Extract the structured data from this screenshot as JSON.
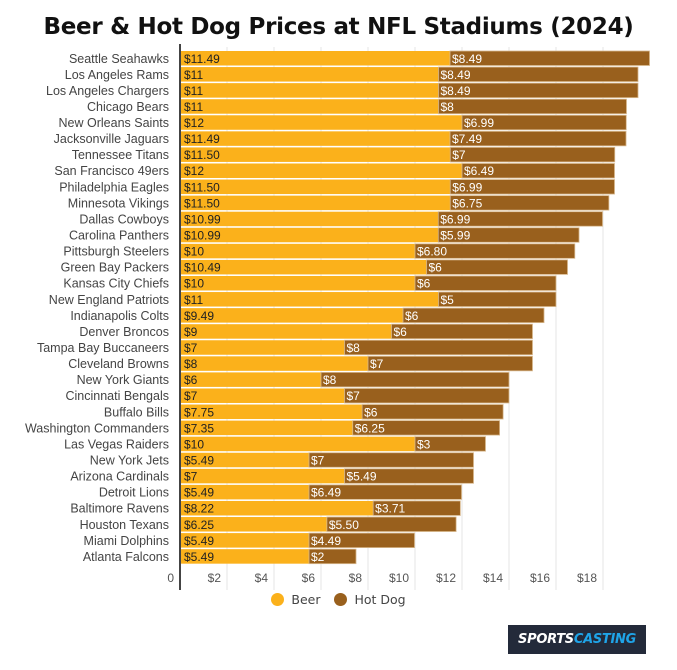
{
  "chart_data": {
    "type": "bar",
    "orientation": "horizontal",
    "stacked": true,
    "title": "Beer & Hot Dog Prices at NFL Stadiums (2024)",
    "xlabel": "",
    "ylabel": "",
    "xlim": [
      0,
      20
    ],
    "x_ticks": [
      0,
      2,
      4,
      6,
      8,
      10,
      12,
      14,
      16,
      18
    ],
    "x_tick_labels": [
      "0",
      "$2",
      "$4",
      "$6",
      "$8",
      "$10",
      "$12",
      "$14",
      "$16",
      "$18"
    ],
    "grid": true,
    "legend_position": "bottom-center",
    "categories": [
      "Seattle Seahawks",
      "Los Angeles Rams",
      "Los Angeles Chargers",
      "Chicago Bears",
      "New Orleans Saints",
      "Jacksonville Jaguars",
      "Tennessee Titans",
      "San Francisco 49ers",
      "Philadelphia Eagles",
      "Minnesota Vikings",
      "Dallas Cowboys",
      "Carolina Panthers",
      "Pittsburgh Steelers",
      "Green Bay Packers",
      "Kansas City Chiefs",
      "New England Patriots",
      "Indianapolis Colts",
      "Denver Broncos",
      "Tampa Bay Buccaneers",
      "Cleveland Browns",
      "New York Giants",
      "Cincinnati Bengals",
      "Buffalo Bills",
      "Washington Commanders",
      "Las Vegas Raiders",
      "New York Jets",
      "Arizona Cardinals",
      "Detroit Lions",
      "Baltimore Ravens",
      "Houston Texans",
      "Miami Dolphins",
      "Atlanta Falcons"
    ],
    "series": [
      {
        "name": "Beer",
        "color": "#fbb11b",
        "values": [
          11.49,
          11,
          11,
          11,
          12,
          11.49,
          11.5,
          12,
          11.5,
          11.5,
          10.99,
          10.99,
          10,
          10.49,
          10,
          11,
          9.49,
          9,
          7,
          8,
          6,
          7,
          7.75,
          7.35,
          10,
          5.49,
          7,
          5.49,
          8.22,
          6.25,
          5.49,
          5.49
        ],
        "labels": [
          "$11.49",
          "$11",
          "$11",
          "$11",
          "$12",
          "$11.49",
          "$11.50",
          "$12",
          "$11.50",
          "$11.50",
          "$10.99",
          "$10.99",
          "$10",
          "$10.49",
          "$10",
          "$11",
          "$9.49",
          "$9",
          "$7",
          "$8",
          "$6",
          "$7",
          "$7.75",
          "$7.35",
          "$10",
          "$5.49",
          "$7",
          "$5.49",
          "$8.22",
          "$6.25",
          "$5.49",
          "$5.49"
        ]
      },
      {
        "name": "Hot Dog",
        "color": "#99601d",
        "values": [
          8.49,
          8.49,
          8.49,
          8,
          6.99,
          7.49,
          7,
          6.49,
          6.99,
          6.75,
          6.99,
          5.99,
          6.8,
          6,
          6,
          5,
          6,
          6,
          8,
          7,
          8,
          7,
          6,
          6.25,
          3,
          7,
          5.49,
          6.49,
          3.71,
          5.5,
          4.49,
          2
        ],
        "labels": [
          "$8.49",
          "$8.49",
          "$8.49",
          "$8",
          "$6.99",
          "$7.49",
          "$7",
          "$6.49",
          "$6.99",
          "$6.75",
          "$6.99",
          "$5.99",
          "$6.80",
          "$6",
          "$6",
          "$5",
          "$6",
          "$6",
          "$8",
          "$7",
          "$8",
          "$7",
          "$6",
          "$6.25",
          "$3",
          "$7",
          "$5.49",
          "$6.49",
          "$3.71",
          "$5.50",
          "$4.49",
          "$2"
        ]
      }
    ]
  },
  "legend": {
    "items": [
      {
        "label": "Beer",
        "color": "#fbb11b"
      },
      {
        "label": "Hot Dog",
        "color": "#99601d"
      }
    ]
  },
  "branding": {
    "logo_part1": "SPORTS",
    "logo_part2": "CASTING"
  }
}
